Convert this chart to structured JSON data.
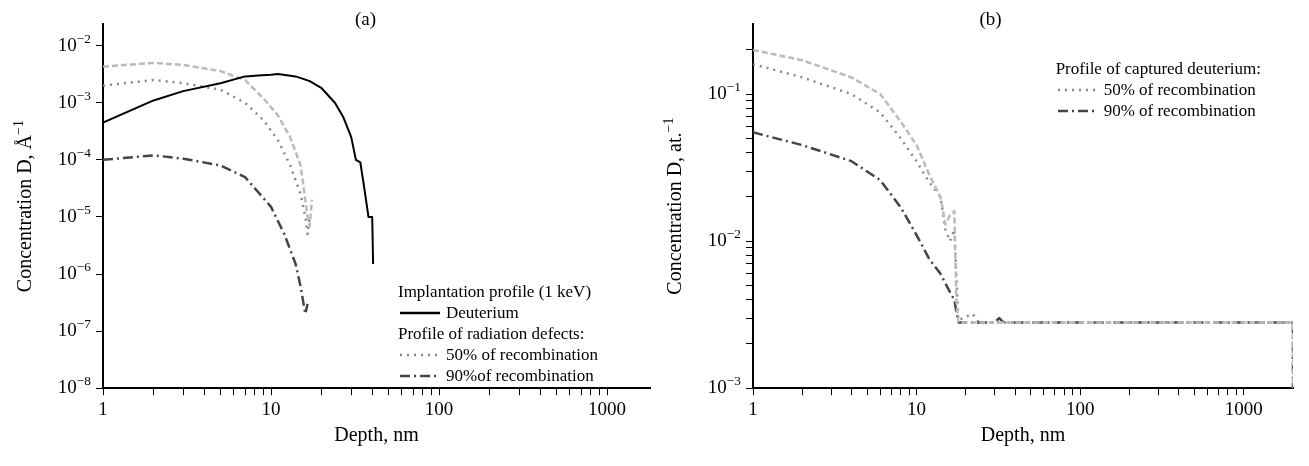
{
  "chart_data": [
    {
      "type": "line",
      "title": "(a)",
      "xlabel": "Depth, nm",
      "ylabel": "Concentration D, Å$^{−1}$",
      "log": "xy",
      "legend": "bottom right",
      "legend_title": "Implantation profile (1 keV)",
      "annotations": [
        "Profile of radiation defects:"
      ],
      "xlim": [
        1,
        1800
      ],
      "ylim": [
        1e-08,
        0.024
      ],
      "xticks": [
        1,
        {
          "value": 2,
          "label": null
        },
        {
          "value": 3,
          "label": null
        },
        {
          "value": 4,
          "label": null
        },
        {
          "value": 5,
          "label": null
        },
        {
          "value": 6,
          "label": null
        },
        {
          "value": 7,
          "label": null
        },
        {
          "value": 8,
          "label": null
        },
        {
          "value": 9,
          "label": null
        },
        10,
        {
          "value": 20,
          "label": null
        },
        {
          "value": 30,
          "label": null
        },
        {
          "value": 40,
          "label": null
        },
        {
          "value": 50,
          "label": null
        },
        {
          "value": 60,
          "label": null
        },
        {
          "value": 70,
          "label": null
        },
        {
          "value": 80,
          "label": null
        },
        {
          "value": 90,
          "label": null
        },
        100,
        {
          "value": 200,
          "label": null
        },
        {
          "value": 300,
          "label": null
        },
        {
          "value": 400,
          "label": null
        },
        {
          "value": 500,
          "label": null
        },
        {
          "value": 600,
          "label": null
        },
        {
          "value": 700,
          "label": null
        },
        {
          "value": 800,
          "label": null
        },
        {
          "value": 900,
          "label": null
        },
        1000
      ],
      "yticks": [
        {
          "value": 1e-08,
          "label": "10$^{−8}$"
        },
        {
          "value": 1e-07,
          "label": "10$^{−7}$"
        },
        {
          "value": 1e-06,
          "label": "10$^{−6}$"
        },
        {
          "value": 1e-05,
          "label": "10$^{−5}$"
        },
        {
          "value": 0.0001,
          "label": "10$^{−4}$"
        },
        {
          "value": 0.001,
          "label": "10$^{−3}$"
        },
        {
          "value": 0.01,
          "label": "10$^{−2}$"
        }
      ],
      "series": [
        {
          "name": "Deuterium",
          "color": "#000000",
          "line_style": "solid",
          "x": [
            1,
            2,
            3,
            5,
            7,
            10,
            11,
            14,
            17,
            20,
            24,
            27,
            30,
            32,
            34,
            36,
            38,
            40,
            40.5
          ],
          "values": [
            0.00045,
            0.0011,
            0.0016,
            0.0022,
            0.0029,
            0.0031,
            0.0032,
            0.0029,
            0.0024,
            0.0018,
            0.001,
            0.00055,
            0.00025,
            0.0001,
            9e-05,
            3e-05,
            1e-05,
            1e-05,
            1.5e-06
          ]
        },
        {
          "color": "#bbbbbb",
          "line_style": "dashed",
          "x": [
            1,
            2,
            3,
            5,
            7,
            9,
            11,
            13,
            15,
            16,
            16.5,
            17,
            17.5
          ],
          "values": [
            0.0043,
            0.005,
            0.0046,
            0.0036,
            0.0025,
            0.0012,
            0.0006,
            0.00025,
            8e-05,
            2e-05,
            1e-05,
            7e-06,
            2e-05
          ]
        },
        {
          "name": "50% of recombination",
          "color": "#888888",
          "line_style": "dotted",
          "x": [
            1,
            2,
            3,
            5,
            7,
            9,
            11,
            13,
            15,
            16,
            16.5,
            17
          ],
          "values": [
            0.002,
            0.0025,
            0.0022,
            0.0017,
            0.001,
            0.0005,
            0.00022,
            8e-05,
            2.5e-05,
            1e-05,
            5e-06,
            1e-05
          ]
        },
        {
          "name": "90%of recombination",
          "color": "#444444",
          "line_style": "dashdot",
          "x": [
            1,
            2,
            3,
            5,
            7,
            10,
            12,
            14,
            15,
            16,
            16.5
          ],
          "values": [
            0.0001,
            0.00012,
            0.000105,
            8e-05,
            5e-05,
            1.5e-05,
            5e-06,
            1.5e-06,
            6e-07,
            2e-07,
            3e-07
          ]
        }
      ]
    },
    {
      "type": "line",
      "title": "(b)",
      "xlabel": "Depth, nm",
      "ylabel": "Concentration D, at.$^{−1}$",
      "log": "xy",
      "legend": "top right",
      "legend_title": "Profile of captured deuterium:",
      "xlim": [
        1,
        2000
      ],
      "ylim": [
        0.001,
        0.3
      ],
      "xticks": [
        1,
        {
          "value": 2,
          "label": null
        },
        {
          "value": 3,
          "label": null
        },
        {
          "value": 4,
          "label": null
        },
        {
          "value": 5,
          "label": null
        },
        {
          "value": 6,
          "label": null
        },
        {
          "value": 7,
          "label": null
        },
        {
          "value": 8,
          "label": null
        },
        {
          "value": 9,
          "label": null
        },
        10,
        {
          "value": 20,
          "label": null
        },
        {
          "value": 30,
          "label": null
        },
        {
          "value": 40,
          "label": null
        },
        {
          "value": 50,
          "label": null
        },
        {
          "value": 60,
          "label": null
        },
        {
          "value": 70,
          "label": null
        },
        {
          "value": 80,
          "label": null
        },
        {
          "value": 90,
          "label": null
        },
        100,
        {
          "value": 200,
          "label": null
        },
        {
          "value": 300,
          "label": null
        },
        {
          "value": 400,
          "label": null
        },
        {
          "value": 500,
          "label": null
        },
        {
          "value": 600,
          "label": null
        },
        {
          "value": 700,
          "label": null
        },
        {
          "value": 800,
          "label": null
        },
        {
          "value": 900,
          "label": null
        },
        1000
      ],
      "yticks": [
        {
          "value": 0.001,
          "label": "10$^{−3}$"
        },
        {
          "value": 0.002,
          "label": null
        },
        {
          "value": 0.003,
          "label": null
        },
        {
          "value": 0.004,
          "label": null
        },
        {
          "value": 0.005,
          "label": null
        },
        {
          "value": 0.006,
          "label": null
        },
        {
          "value": 0.007,
          "label": null
        },
        {
          "value": 0.008,
          "label": null
        },
        {
          "value": 0.009,
          "label": null
        },
        {
          "value": 0.01,
          "label": "10$^{−2}$"
        },
        {
          "value": 0.02,
          "label": null
        },
        {
          "value": 0.03,
          "label": null
        },
        {
          "value": 0.04,
          "label": null
        },
        {
          "value": 0.05,
          "label": null
        },
        {
          "value": 0.06,
          "label": null
        },
        {
          "value": 0.07,
          "label": null
        },
        {
          "value": 0.08,
          "label": null
        },
        {
          "value": 0.09,
          "label": null
        },
        {
          "value": 0.1,
          "label": "10$^{−1}$"
        },
        {
          "value": 0.2,
          "label": null
        }
      ],
      "series": [
        {
          "color": "#bbbbbb",
          "line_style": "dashed",
          "x": [
            1,
            2,
            4,
            6,
            8,
            10,
            12,
            14,
            15,
            16,
            17,
            17.5,
            18,
            2000,
            2000
          ],
          "values": [
            0.2,
            0.17,
            0.13,
            0.1,
            0.065,
            0.045,
            0.028,
            0.02,
            0.013,
            0.015,
            0.016,
            0.004,
            0.0028,
            0.0028,
            0.001
          ]
        },
        {
          "name": "50% of recombination",
          "color": "#888888",
          "line_style": "dotted",
          "x": [
            1,
            2,
            4,
            6,
            8,
            10,
            12,
            14,
            15,
            16,
            17,
            17.5,
            18,
            22,
            24,
            2000,
            2000
          ],
          "values": [
            0.16,
            0.13,
            0.1,
            0.075,
            0.05,
            0.035,
            0.025,
            0.02,
            0.012,
            0.01,
            0.012,
            0.006,
            0.0029,
            0.0032,
            0.0028,
            0.0028,
            0.001
          ]
        },
        {
          "name": "90% of recombination",
          "color": "#444444",
          "line_style": "dashdot",
          "x": [
            1,
            2,
            4,
            6,
            8,
            10,
            12,
            14,
            16,
            17,
            18,
            30,
            32,
            34,
            2000,
            2000
          ],
          "values": [
            0.055,
            0.045,
            0.035,
            0.026,
            0.017,
            0.011,
            0.0075,
            0.006,
            0.0045,
            0.004,
            0.0028,
            0.0028,
            0.003,
            0.0028,
            0.0028,
            0.001
          ]
        }
      ]
    }
  ]
}
